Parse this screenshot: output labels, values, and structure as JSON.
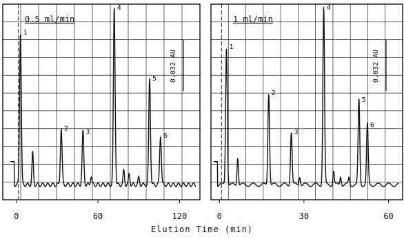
{
  "xlabel": "Elution Time (min)",
  "chart_data": [
    {
      "type": "line",
      "flow_label": "0.5 ml/min",
      "scale_label": "0.032 AU",
      "xticks": [
        0,
        60,
        120
      ],
      "xlim": [
        -10,
        135
      ],
      "ylim": [
        0,
        1
      ],
      "peaks": [
        {
          "label": "1",
          "x": 3,
          "y": 0.86
        },
        {
          "label": "2",
          "x": 33,
          "y": 0.32
        },
        {
          "label": "3",
          "x": 49,
          "y": 0.3
        },
        {
          "label": "4",
          "x": 72,
          "y": 1.0
        },
        {
          "label": "5",
          "x": 98,
          "y": 0.6
        },
        {
          "label": "6",
          "x": 106,
          "y": 0.28
        }
      ],
      "minor_peaks": [
        {
          "x": 12,
          "y": 0.18
        },
        {
          "x": 55,
          "y": 0.05
        },
        {
          "x": 79,
          "y": 0.08
        },
        {
          "x": 83,
          "y": 0.06
        },
        {
          "x": 90,
          "y": 0.04
        }
      ]
    },
    {
      "type": "line",
      "flow_label": "1 ml/min",
      "scale_label": "0.032 AU",
      "xticks": [
        0,
        30,
        60
      ],
      "xlim": [
        -3,
        65
      ],
      "ylim": [
        0,
        1
      ],
      "peaks": [
        {
          "label": "1",
          "x": 2.5,
          "y": 0.78
        },
        {
          "label": "2",
          "x": 17.5,
          "y": 0.52
        },
        {
          "label": "3",
          "x": 25.5,
          "y": 0.3
        },
        {
          "label": "4",
          "x": 37,
          "y": 1.0
        },
        {
          "label": "5",
          "x": 49.5,
          "y": 0.48
        },
        {
          "label": "6",
          "x": 52.5,
          "y": 0.34
        }
      ],
      "minor_peaks": [
        {
          "x": 6.5,
          "y": 0.16
        },
        {
          "x": 28.5,
          "y": 0.05
        },
        {
          "x": 40.5,
          "y": 0.08
        },
        {
          "x": 43,
          "y": 0.05
        },
        {
          "x": 46,
          "y": 0.04
        }
      ]
    }
  ]
}
